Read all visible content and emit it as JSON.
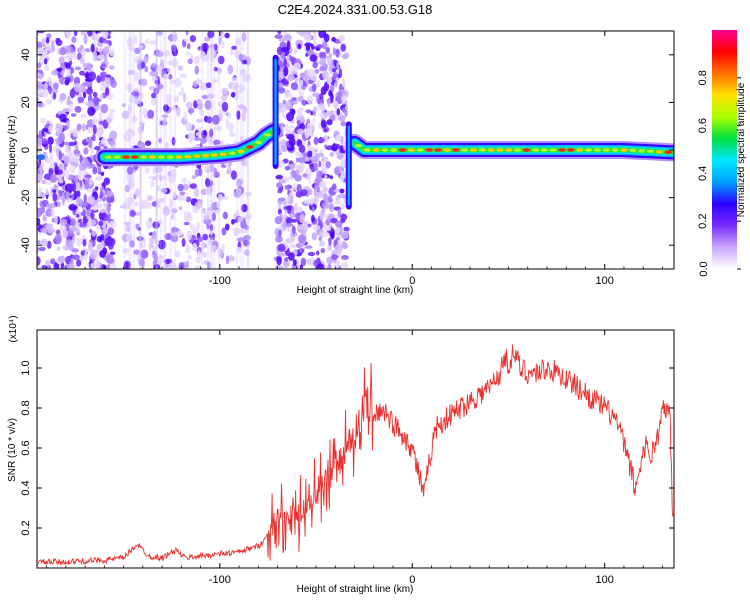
{
  "chart_data": [
    {
      "type": "heatmap",
      "title": "C2E4.2024.331.00.53.G18",
      "xlabel": "Height of straight line (km)",
      "ylabel": "Frequency (Hz)",
      "xlim": [
        -195,
        136
      ],
      "ylim": [
        -50,
        50
      ],
      "xticks": [
        -100,
        0,
        100
      ],
      "yticks": [
        -40,
        -20,
        0,
        20,
        40
      ],
      "colorbar": {
        "label": "Normalized spectral amplitude",
        "range": [
          0,
          1
        ],
        "ticks": [
          "0.0",
          "0.2",
          "0.4",
          "0.6",
          "0.8"
        ],
        "colormap": [
          "#ffffff",
          "#c9a8ff",
          "#7a2cff",
          "#2a00ff",
          "#00a0ff",
          "#00e8ff",
          "#00e040",
          "#aaff00",
          "#ffe000",
          "#ff7000",
          "#ff0000",
          "#ff0090"
        ]
      },
      "ridge": {
        "x": [
          -160,
          -140,
          -120,
          -100,
          -90,
          -80,
          -76,
          -72,
          -34,
          -30,
          -25,
          -10,
          0,
          20,
          50,
          80,
          110,
          135
        ],
        "y": [
          -3,
          -3,
          -3,
          -2,
          -1,
          3,
          6,
          8,
          10,
          3,
          0,
          0,
          0,
          0,
          0,
          0,
          0,
          -1
        ]
      },
      "noise_bands_km": [
        [
          -195,
          -155
        ],
        [
          -150,
          -85
        ],
        [
          -70,
          -34
        ]
      ],
      "spikes": [
        {
          "x": -71,
          "y_range": [
            -8,
            40
          ]
        },
        {
          "x": -33,
          "y_range": [
            -25,
            12
          ]
        }
      ]
    },
    {
      "type": "line",
      "title": "",
      "xlabel": "Height of straight line (km)",
      "ylabel": "SNR (10 * v/v)",
      "scale_label": "(x10⁴)",
      "xlim": [
        -195,
        136
      ],
      "ylim": [
        0,
        1.19
      ],
      "xticks": [
        -100,
        0,
        100
      ],
      "yticks": [
        0.2,
        0.4,
        0.6,
        0.8,
        1.0
      ],
      "color": "#e8312e",
      "series": [
        {
          "x": [
            -195,
            -180,
            -160,
            -150,
            -143,
            -137,
            -130,
            -123,
            -118,
            -110,
            -100,
            -90,
            -80,
            -76,
            -70,
            -64,
            -60,
            -55,
            -50,
            -45,
            -40,
            -35,
            -30,
            -27,
            -24,
            -20,
            -15,
            -10,
            -5,
            0,
            4,
            6,
            8,
            12,
            18,
            25,
            32,
            40,
            46,
            48,
            50,
            53,
            56,
            62,
            70,
            78,
            85,
            92,
            100,
            106,
            110,
            114,
            116,
            118,
            121,
            124,
            127,
            130,
            132,
            134,
            135,
            136
          ],
          "y": [
            0.03,
            0.03,
            0.04,
            0.05,
            0.12,
            0.06,
            0.05,
            0.09,
            0.05,
            0.06,
            0.07,
            0.08,
            0.11,
            0.15,
            0.28,
            0.22,
            0.26,
            0.3,
            0.35,
            0.45,
            0.48,
            0.58,
            0.68,
            0.75,
            0.82,
            0.75,
            0.8,
            0.72,
            0.67,
            0.6,
            0.45,
            0.35,
            0.48,
            0.7,
            0.75,
            0.8,
            0.85,
            0.9,
            0.98,
            1.06,
            1.02,
            1.08,
            1.0,
            0.97,
            1.0,
            0.96,
            0.91,
            0.86,
            0.8,
            0.74,
            0.62,
            0.48,
            0.38,
            0.5,
            0.62,
            0.56,
            0.64,
            0.78,
            0.8,
            0.74,
            0.35,
            0.2
          ]
        }
      ]
    }
  ]
}
